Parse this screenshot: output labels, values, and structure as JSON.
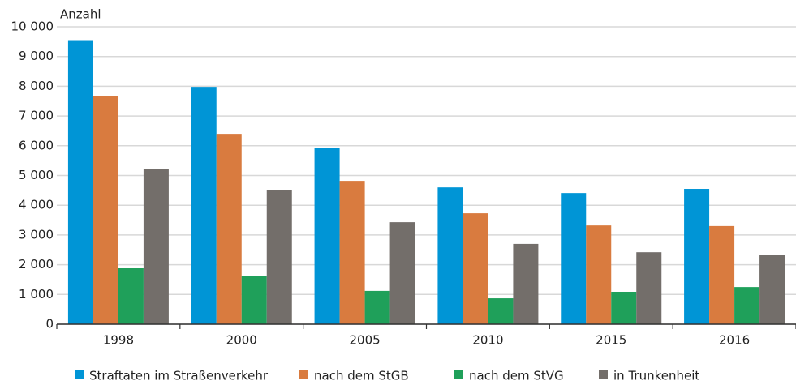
{
  "chart_data": {
    "type": "bar",
    "y_label": "Anzahl",
    "categories": [
      "1998",
      "2000",
      "2005",
      "2010",
      "2015",
      "2016"
    ],
    "series": [
      {
        "name": "Straftaten im Straßenverkehr",
        "color": "#0095d6",
        "values": [
          9550,
          7980,
          5940,
          4600,
          4410,
          4550
        ]
      },
      {
        "name": "nach dem StGB",
        "color": "#d97b3f",
        "values": [
          7680,
          6400,
          4820,
          3730,
          3320,
          3300
        ]
      },
      {
        "name": "nach dem StVG",
        "color": "#1fa05a",
        "values": [
          1880,
          1610,
          1120,
          870,
          1090,
          1250
        ]
      },
      {
        "name": "in Trunkenheit",
        "color": "#736e6a",
        "values": [
          5230,
          4520,
          3430,
          2700,
          2420,
          2320
        ]
      }
    ],
    "ylim": [
      0,
      10000
    ],
    "yticks": [
      0,
      {
        "value": 1000,
        "label": "1 000"
      },
      {
        "value": 2000,
        "label": "2 000"
      },
      {
        "value": 3000,
        "label": "3 000"
      },
      {
        "value": 4000,
        "label": "4 000"
      },
      {
        "value": 5000,
        "label": "5 000"
      },
      {
        "value": 6000,
        "label": "6 000"
      },
      {
        "value": 7000,
        "label": "7 000"
      },
      {
        "value": 8000,
        "label": "8 000"
      },
      {
        "value": 9000,
        "label": "9 000"
      },
      {
        "value": 10000,
        "label": "10 000"
      }
    ],
    "grid": true
  }
}
